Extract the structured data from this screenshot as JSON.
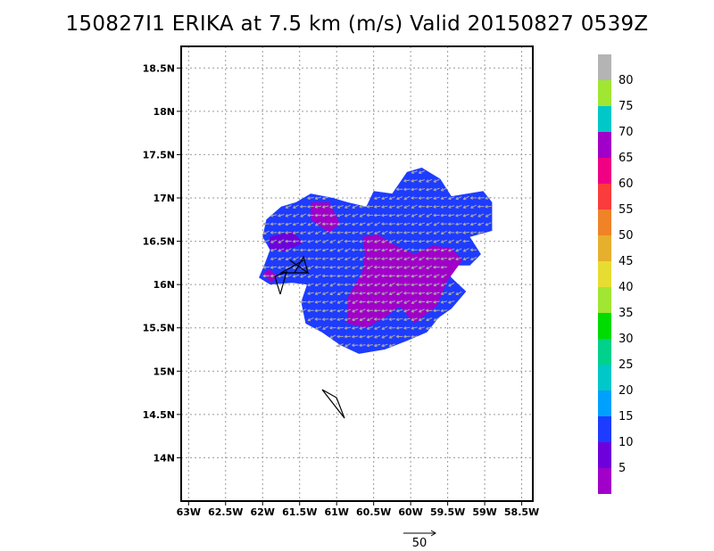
{
  "title": "150827I1 ERIKA at 7.5 km (m/s) Valid 20150827 0539Z",
  "chart_data": {
    "type": "heatmap",
    "title": "150827I1 ERIKA at 7.5 km (m/s) Valid 20150827 0539Z",
    "units": "m/s",
    "xlim": [
      -63.1,
      -58.35
    ],
    "ylim": [
      13.5,
      18.75
    ],
    "x_ticks": [
      {
        "value": -63.0,
        "label": "63W"
      },
      {
        "value": -62.5,
        "label": "62.5W"
      },
      {
        "value": -62.0,
        "label": "62W"
      },
      {
        "value": -61.5,
        "label": "61.5W"
      },
      {
        "value": -61.0,
        "label": "61W"
      },
      {
        "value": -60.5,
        "label": "60.5W"
      },
      {
        "value": -60.0,
        "label": "60W"
      },
      {
        "value": -59.5,
        "label": "59.5W"
      },
      {
        "value": -59.0,
        "label": "59W"
      },
      {
        "value": -58.5,
        "label": "58.5W"
      }
    ],
    "y_ticks": [
      {
        "value": 18.5,
        "label": "18.5N"
      },
      {
        "value": 18.0,
        "label": "18N"
      },
      {
        "value": 17.5,
        "label": "17.5N"
      },
      {
        "value": 17.0,
        "label": "17N"
      },
      {
        "value": 16.5,
        "label": "16.5N"
      },
      {
        "value": 16.0,
        "label": "16N"
      },
      {
        "value": 15.5,
        "label": "15.5N"
      },
      {
        "value": 15.0,
        "label": "15N"
      },
      {
        "value": 14.5,
        "label": "14.5N"
      },
      {
        "value": 14.0,
        "label": "14N"
      }
    ],
    "grid": true,
    "coverage_polygon": [
      [
        -61.97,
        16.24
      ],
      [
        -62.05,
        16.08
      ],
      [
        -61.9,
        16.0
      ],
      [
        -61.6,
        16.02
      ],
      [
        -61.4,
        16.0
      ],
      [
        -61.48,
        15.8
      ],
      [
        -61.42,
        15.55
      ],
      [
        -61.2,
        15.45
      ],
      [
        -60.95,
        15.3
      ],
      [
        -60.7,
        15.2
      ],
      [
        -60.35,
        15.25
      ],
      [
        -60.05,
        15.35
      ],
      [
        -59.78,
        15.45
      ],
      [
        -59.62,
        15.62
      ],
      [
        -59.45,
        15.72
      ],
      [
        -59.25,
        15.92
      ],
      [
        -59.45,
        16.08
      ],
      [
        -59.55,
        16.22
      ],
      [
        -59.2,
        16.22
      ],
      [
        -59.05,
        16.35
      ],
      [
        -59.2,
        16.55
      ],
      [
        -58.9,
        16.62
      ],
      [
        -58.9,
        16.95
      ],
      [
        -59.02,
        17.08
      ],
      [
        -59.45,
        17.02
      ],
      [
        -59.6,
        17.22
      ],
      [
        -59.85,
        17.35
      ],
      [
        -60.05,
        17.3
      ],
      [
        -60.25,
        17.05
      ],
      [
        -60.5,
        17.08
      ],
      [
        -60.6,
        16.9
      ],
      [
        -60.85,
        16.95
      ],
      [
        -61.05,
        17.0
      ],
      [
        -61.35,
        17.05
      ],
      [
        -61.55,
        16.95
      ],
      [
        -61.75,
        16.9
      ],
      [
        -61.95,
        16.75
      ],
      [
        -62.0,
        16.55
      ],
      [
        -61.9,
        16.4
      ]
    ],
    "base_value": 12,
    "regions": [
      {
        "name": "core-low-wind",
        "value": 4,
        "polygon": [
          [
            -60.65,
            16.55
          ],
          [
            -60.45,
            16.58
          ],
          [
            -60.2,
            16.45
          ],
          [
            -59.95,
            16.35
          ],
          [
            -59.7,
            16.45
          ],
          [
            -59.45,
            16.42
          ],
          [
            -59.3,
            16.28
          ],
          [
            -59.5,
            16.05
          ],
          [
            -59.65,
            15.75
          ],
          [
            -59.95,
            15.55
          ],
          [
            -60.15,
            15.75
          ],
          [
            -60.35,
            15.62
          ],
          [
            -60.6,
            15.5
          ],
          [
            -60.85,
            15.55
          ],
          [
            -60.85,
            15.85
          ],
          [
            -60.65,
            16.15
          ],
          [
            -60.62,
            16.35
          ]
        ]
      },
      {
        "name": "north-low-wind",
        "value": 4,
        "polygon": [
          [
            -61.35,
            16.95
          ],
          [
            -61.1,
            16.95
          ],
          [
            -60.95,
            16.7
          ],
          [
            -61.1,
            16.6
          ],
          [
            -61.35,
            16.75
          ]
        ]
      },
      {
        "name": "west-low-wind",
        "value": 5,
        "polygon": [
          [
            -61.9,
            16.55
          ],
          [
            -61.6,
            16.62
          ],
          [
            -61.45,
            16.48
          ],
          [
            -61.7,
            16.38
          ],
          [
            -61.92,
            16.42
          ]
        ]
      },
      {
        "name": "southwest-edge-low-wind",
        "value": 4,
        "polygon": [
          [
            -62.0,
            16.12
          ],
          [
            -61.88,
            16.02
          ],
          [
            -61.8,
            16.1
          ],
          [
            -61.92,
            16.18
          ]
        ]
      }
    ],
    "wind_arrow_direction": "toward southwest",
    "storm_track_marker": "tropical storm symbol near 61.55W 16.2N",
    "colorbar": {
      "ticks": [
        "5",
        "10",
        "15",
        "20",
        "25",
        "30",
        "35",
        "40",
        "45",
        "50",
        "55",
        "60",
        "65",
        "70",
        "75",
        "80"
      ],
      "colors": [
        "#a000c8",
        "#6e00dc",
        "#1e3cff",
        "#00a0ff",
        "#00c8c8",
        "#00d28c",
        "#00dc00",
        "#a0e632",
        "#e6dc32",
        "#e6af2d",
        "#f08228",
        "#fa3c3c",
        "#f00082",
        "#a000c8",
        "#00c8c8",
        "#a0e632",
        "#b4b4b4"
      ]
    },
    "vector_scale": {
      "label": "50"
    }
  }
}
